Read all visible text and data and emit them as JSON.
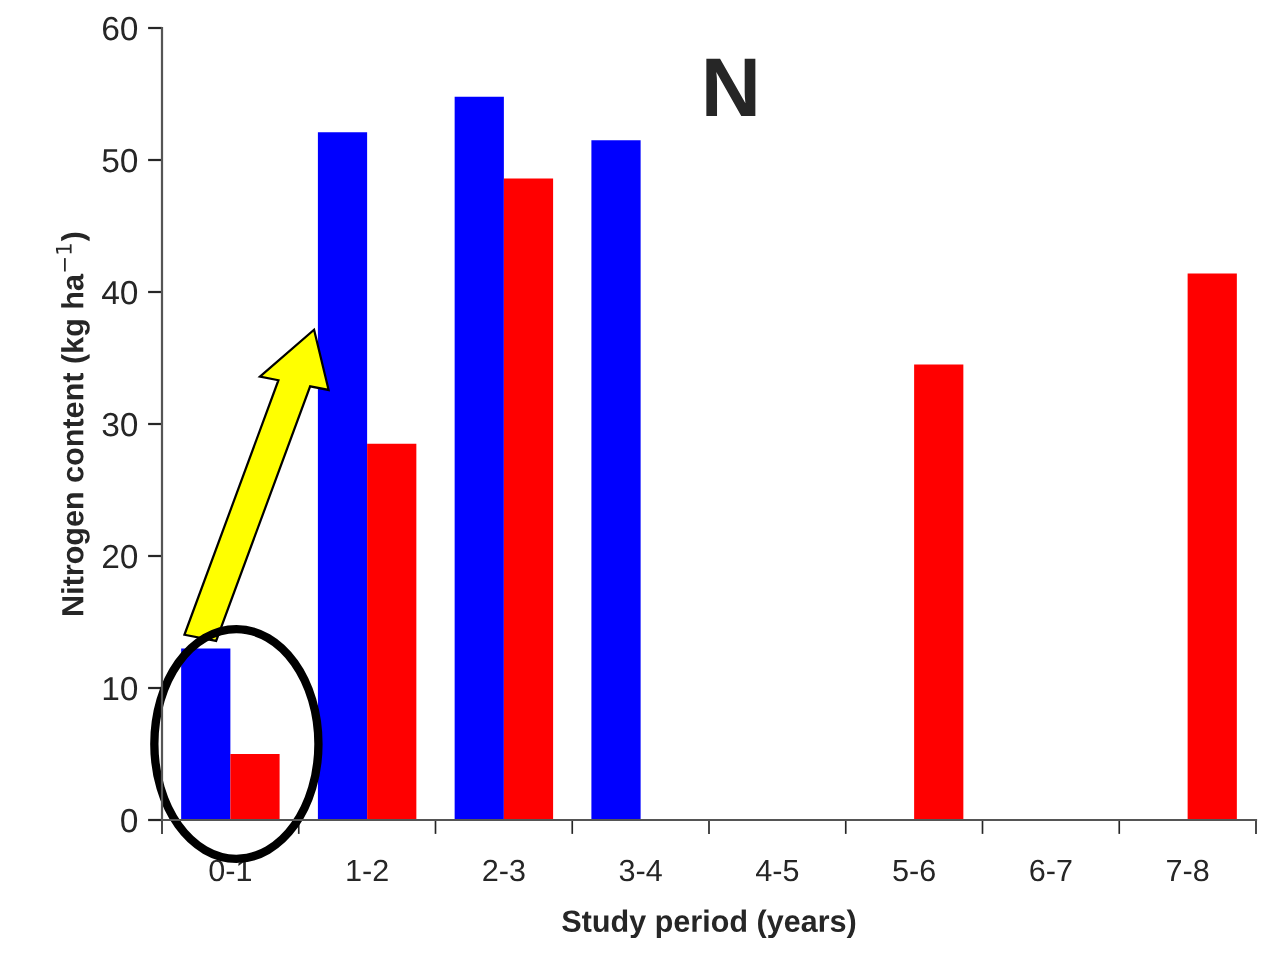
{
  "chart_data": {
    "type": "bar",
    "title": "N",
    "xlabel": "Study period (years)",
    "ylabel": "Nitrogen content (kg ha$^{−1}$)",
    "categories": [
      "0-1",
      "1-2",
      "2-3",
      "3-4",
      "4-5",
      "5-6",
      "6-7",
      "7-8"
    ],
    "series": [
      {
        "color": "#0000ff",
        "values": [
          13.0,
          52.1,
          54.8,
          51.5,
          null,
          null,
          null,
          null
        ]
      },
      {
        "color": "#ff0000",
        "values": [
          5.0,
          28.5,
          48.6,
          null,
          null,
          34.5,
          null,
          41.4
        ]
      }
    ],
    "ylim": [
      0,
      60
    ],
    "yticks": [
      0,
      10,
      20,
      30,
      40,
      50,
      60
    ],
    "grid": false,
    "legend": false
  }
}
